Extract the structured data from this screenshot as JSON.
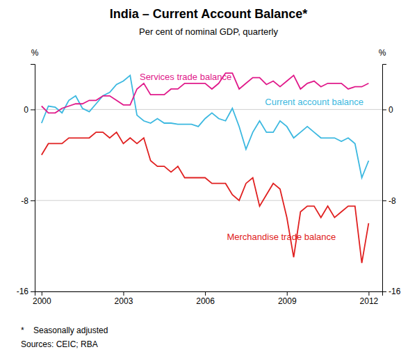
{
  "chart_data": {
    "type": "line",
    "title": "India – Current Account Balance*",
    "subtitle": "Per cent of nominal GDP, quarterly",
    "ylabel": "%",
    "y2label": "%",
    "footnotes": [
      "*    Seasonally adjusted",
      "Sources: CEIC; RBA"
    ],
    "xlim": [
      1999.75,
      2012.5
    ],
    "xticks": [
      2000,
      2003,
      2006,
      2009,
      2012
    ],
    "ylim": [
      -16,
      4
    ],
    "yticks": [
      -16,
      -8,
      0
    ],
    "y2lim": [
      -16,
      4
    ],
    "y2ticks": [
      -16,
      -8,
      0
    ],
    "grid": true,
    "x": [
      2000.0,
      2000.25,
      2000.5,
      2000.75,
      2001.0,
      2001.25,
      2001.5,
      2001.75,
      2002.0,
      2002.25,
      2002.5,
      2002.75,
      2003.0,
      2003.25,
      2003.5,
      2003.75,
      2004.0,
      2004.25,
      2004.5,
      2004.75,
      2005.0,
      2005.25,
      2005.5,
      2005.75,
      2006.0,
      2006.25,
      2006.5,
      2006.75,
      2007.0,
      2007.25,
      2007.5,
      2007.75,
      2008.0,
      2008.25,
      2008.5,
      2008.75,
      2009.0,
      2009.25,
      2009.5,
      2009.75,
      2010.0,
      2010.25,
      2010.5,
      2010.75,
      2011.0,
      2011.25,
      2011.5,
      2011.75,
      2012.0
    ],
    "series": [
      {
        "name": "Current account balance",
        "color": "#3BB8E0",
        "values": [
          -1.2,
          0.3,
          0.2,
          -0.3,
          0.8,
          1.2,
          0.1,
          -0.2,
          0.5,
          1.2,
          1.5,
          2.2,
          2.5,
          3.0,
          -0.5,
          -1.0,
          -1.2,
          -0.8,
          -1.2,
          -1.2,
          -1.3,
          -1.3,
          -1.3,
          -1.5,
          -0.8,
          -0.3,
          -0.8,
          -1.0,
          0.1,
          -1.5,
          -3.5,
          -2.0,
          -1.0,
          -2.0,
          -2.0,
          -1.0,
          -1.5,
          -2.5,
          -2.0,
          -1.5,
          -2.0,
          -2.5,
          -2.5,
          -2.5,
          -2.8,
          -2.5,
          -3.0,
          -6.0,
          -4.5
        ]
      },
      {
        "name": "Services trade balance",
        "color": "#E0198A",
        "values": [
          0.3,
          -0.3,
          -0.3,
          0.1,
          0.3,
          0.5,
          0.5,
          0.8,
          0.8,
          1.2,
          1.2,
          0.8,
          0.4,
          0.4,
          1.8,
          2.3,
          1.3,
          1.3,
          1.3,
          1.8,
          1.8,
          2.3,
          2.3,
          2.3,
          2.3,
          1.8,
          2.3,
          3.2,
          3.2,
          1.8,
          2.3,
          2.8,
          2.8,
          2.2,
          2.5,
          2.0,
          2.5,
          3.0,
          1.8,
          2.3,
          2.5,
          2.0,
          2.3,
          2.3,
          2.3,
          1.8,
          2.0,
          2.0,
          2.3
        ]
      },
      {
        "name": "Merchandise trade balance",
        "color": "#E02020",
        "values": [
          -4.0,
          -3.0,
          -3.0,
          -3.0,
          -2.5,
          -2.5,
          -2.5,
          -2.5,
          -2.0,
          -2.0,
          -2.5,
          -2.0,
          -3.0,
          -2.5,
          -3.0,
          -2.5,
          -4.5,
          -5.0,
          -5.0,
          -5.5,
          -5.0,
          -6.0,
          -6.0,
          -6.0,
          -6.0,
          -6.5,
          -6.5,
          -6.5,
          -7.5,
          -8.0,
          -6.5,
          -6.0,
          -8.5,
          -7.5,
          -6.5,
          -7.0,
          -9.5,
          -13.0,
          -9.0,
          -8.5,
          -8.5,
          -9.5,
          -8.5,
          -9.5,
          -9.0,
          -8.5,
          -8.5,
          -13.5,
          -10.0
        ]
      }
    ],
    "annotations": [
      {
        "text": "Services trade balance",
        "x": 2003.6,
        "y": 2.6,
        "color": "#E0198A"
      },
      {
        "text": "Current account balance",
        "x": 2008.2,
        "y": 0.4,
        "color": "#3BB8E0"
      },
      {
        "text": "Merchandise trade balance",
        "x": 2006.8,
        "y": -11.5,
        "color": "#E02020"
      }
    ]
  }
}
